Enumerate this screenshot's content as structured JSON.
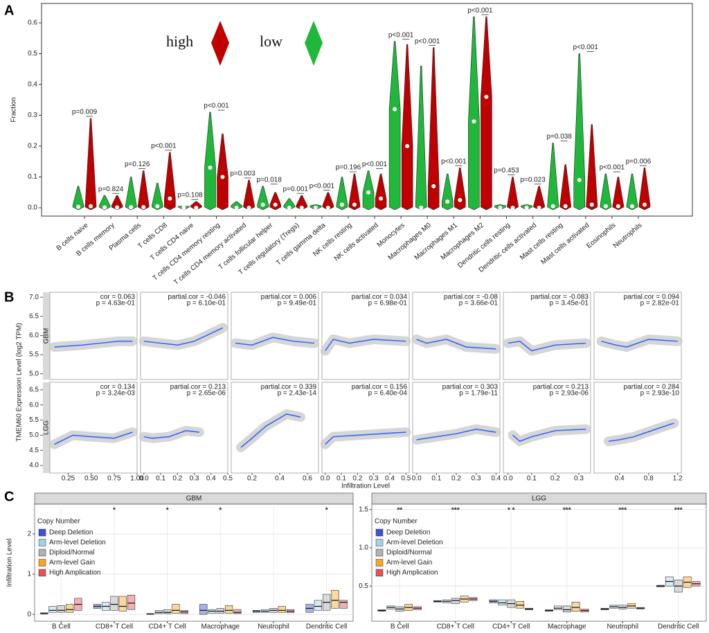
{
  "chart_data": [
    {
      "type": "violin",
      "label": "A",
      "ylabel": "Fraction",
      "ylim": [
        -0.027,
        0.663
      ],
      "yticks": [
        {
          "value": 0,
          "label": "0.0"
        },
        0.1,
        0.2,
        0.3,
        0.4,
        0.5,
        0.6
      ],
      "categories": [
        "B cells naive",
        "B cells memory",
        "Plasma cells",
        "T cells CD8",
        "T cells CD4 naive",
        "T cells CD4 memory resting",
        "T cells CD4 memory activated",
        "T cells follicular helper",
        "T cells regulatory (Tregs)",
        "T cells gamma delta",
        "NK cells resting",
        "NK cells activated",
        "Monocytes",
        "Macrophages M0",
        "Macrophages M1",
        "Macrophages M2",
        "Dendritic cells resting",
        "Dendritic cells activated",
        "Mast cells resting",
        "Mast cells activated",
        "Eosinophils",
        "Neutrophils"
      ],
      "p_labels": [
        "p=0.009",
        "p=0.824",
        "p=0.126",
        "p<0.001",
        "p=0.108",
        "p<0.001",
        "p=0.003",
        "p=0.018",
        "p=0.001",
        "p<0.001",
        "p=0.196",
        "p<0.001",
        "p<0.001",
        "p<0.001",
        "p<0.001",
        "p<0.001",
        "p=0.453",
        "p=0.023",
        "p=0.038",
        "p<0.001",
        "p<0.001",
        "p=0.006"
      ],
      "series": [
        {
          "name": "high",
          "color": "#c00000",
          "values": [
            0.005,
            0.001,
            0.002,
            0.03,
            0,
            0.1,
            0,
            0.01,
            0,
            0,
            0.01,
            0.03,
            0.2,
            0.07,
            0.025,
            0.36,
            0,
            0,
            0.005,
            0.01,
            0.005,
            0.01
          ],
          "max": [
            0.29,
            0.04,
            0.12,
            0.18,
            0.02,
            0.24,
            0.09,
            0.05,
            0.04,
            0.05,
            0.11,
            0.11,
            0.53,
            0.52,
            0.13,
            0.62,
            0.1,
            0.07,
            0.14,
            0.27,
            0.1,
            0.13
          ]
        },
        {
          "name": "low",
          "color": "#1fb83a",
          "values": [
            0.003,
            0.001,
            0.002,
            0.005,
            0,
            0.13,
            0,
            0.01,
            0,
            0,
            0.01,
            0.05,
            0.32,
            0,
            0.02,
            0.28,
            0,
            0,
            0.005,
            0.09,
            0.005,
            0.005
          ],
          "max": [
            0.07,
            0.04,
            0.1,
            0.08,
            0.005,
            0.31,
            0.02,
            0.07,
            0.03,
            0.01,
            0.1,
            0.12,
            0.54,
            0.46,
            0.11,
            0.62,
            0.01,
            0.01,
            0.21,
            0.5,
            0.11,
            0.11
          ]
        }
      ]
    },
    {
      "type": "scatter",
      "label": "B",
      "ylabel": "TMEM60 Expression Level (log2 TPM)",
      "xlabel": "Infiltration Level",
      "line_color": "#3366ff",
      "stat_color": "#e41a1c",
      "columns": [
        {
          "xlim": [
            0.05,
            1.0
          ],
          "xticks": [
            0.25,
            {
              "value": 0.5,
              "label": "0.50"
            },
            0.75,
            {
              "value": 1,
              "label": "1.00"
            }
          ]
        },
        {
          "xlim": [
            -0.02,
            0.5
          ],
          "xticks": [
            {
              "value": 0,
              "label": "0.0"
            },
            0.1,
            0.2,
            0.3,
            0.4,
            0.5
          ]
        },
        {
          "xlim": [
            0.05,
            0.68
          ],
          "xticks": [
            0.2,
            0.4,
            0.6
          ]
        },
        {
          "xlim": [
            -0.02,
            0.52
          ],
          "xticks": [
            {
              "value": 0,
              "label": "0.0"
            },
            0.1,
            0.2,
            0.3,
            0.4,
            0.5
          ]
        },
        {
          "xlim": [
            -0.02,
            0.42
          ],
          "xticks": [
            {
              "value": 0,
              "label": "0.0"
            },
            0.1,
            0.2,
            0.3,
            0.4
          ]
        },
        {
          "xlim": [
            -0.02,
            0.35
          ],
          "xticks": [
            {
              "value": 0,
              "label": "0.0"
            },
            0.1,
            0.2,
            0.3
          ]
        },
        {
          "xlim": [
            0.05,
            1.25
          ],
          "xticks": [
            0.4,
            0.8,
            1.2
          ]
        }
      ],
      "rows": [
        {
          "name": "GBM",
          "ylim": [
            4.85,
            7.13
          ],
          "yticks": [
            {
              "value": 5,
              "label": "5.0"
            },
            5.5,
            {
              "value": 6,
              "label": "6.0"
            },
            6.5,
            {
              "value": 7,
              "label": "7.0"
            }
          ],
          "panels": [
            {
              "stat": "cor = 0.063",
              "p": "p = 4.63e-01",
              "x": [
                0.1,
                0.4,
                0.6,
                0.8,
                0.95
              ],
              "y": [
                5.7,
                5.75,
                5.8,
                5.85,
                5.85
              ]
            },
            {
              "stat": "partial.cor = -0.046",
              "p": "p = 6.10e-01",
              "x": [
                0,
                0.1,
                0.2,
                0.3,
                0.47
              ],
              "y": [
                5.85,
                5.8,
                5.75,
                5.85,
                6.2
              ]
            },
            {
              "stat": "partial.cor = 0.006",
              "p": "p = 9.49e-01",
              "x": [
                0.08,
                0.2,
                0.35,
                0.5,
                0.65
              ],
              "y": [
                5.8,
                5.75,
                5.95,
                5.85,
                5.8
              ]
            },
            {
              "stat": "partial.cor = 0.034",
              "p": "p = 6.98e-01",
              "x": [
                0,
                0.05,
                0.15,
                0.3,
                0.5
              ],
              "y": [
                5.6,
                5.9,
                5.8,
                5.9,
                5.85
              ]
            },
            {
              "stat": "partial.cor = -0.08",
              "p": "p = 3.66e-01",
              "x": [
                0,
                0.05,
                0.15,
                0.25,
                0.4
              ],
              "y": [
                5.9,
                5.8,
                5.9,
                5.7,
                5.65
              ]
            },
            {
              "stat": "partial.cor = -0.083",
              "p": "p = 3.45e-01",
              "x": [
                0,
                0.05,
                0.1,
                0.2,
                0.33
              ],
              "y": [
                5.8,
                5.85,
                5.6,
                5.75,
                5.8
              ]
            },
            {
              "stat": "partial.cor = 0.094",
              "p": "p = 2.82e-01",
              "x": [
                0.15,
                0.35,
                0.5,
                0.8,
                1.2
              ],
              "y": [
                5.85,
                5.75,
                5.7,
                5.9,
                5.85
              ]
            }
          ]
        },
        {
          "name": "LGG",
          "ylim": [
            3.75,
            6.75
          ],
          "yticks": [
            {
              "value": 4,
              "label": "4.0"
            },
            4.5,
            {
              "value": 5,
              "label": "5.0"
            },
            5.5,
            {
              "value": 6,
              "label": "6.0"
            },
            6.5
          ],
          "panels": [
            {
              "stat": "cor = 0.134",
              "p": "p = 3.24e-03",
              "x": [
                0.1,
                0.3,
                0.5,
                0.75,
                0.95
              ],
              "y": [
                4.7,
                5.0,
                4.95,
                4.9,
                5.1
              ]
            },
            {
              "stat": "partial.cor = 0.213",
              "p": "p = 2.65e-06",
              "x": [
                0,
                0.05,
                0.15,
                0.25,
                0.33
              ],
              "y": [
                4.95,
                4.9,
                4.95,
                5.15,
                5.1
              ]
            },
            {
              "stat": "partial.cor = 0.339",
              "p": "p = 2.43e-14",
              "x": [
                0.12,
                0.2,
                0.3,
                0.45,
                0.55
              ],
              "y": [
                4.6,
                4.9,
                5.3,
                5.7,
                5.6
              ]
            },
            {
              "stat": "partial.cor = 0.156",
              "p": "p = 6.40e-04",
              "x": [
                0,
                0.05,
                0.2,
                0.35,
                0.5
              ],
              "y": [
                4.7,
                4.95,
                5.0,
                5.05,
                5.1
              ]
            },
            {
              "stat": "partial.cor = 0.303",
              "p": "p = 1.79e-11",
              "x": [
                0,
                0.1,
                0.2,
                0.3,
                0.4
              ],
              "y": [
                4.85,
                4.95,
                5.05,
                5.2,
                5.1
              ]
            },
            {
              "stat": "partial.cor = 0.213",
              "p": "p = 2.93e-06",
              "x": [
                0.02,
                0.05,
                0.1,
                0.2,
                0.33
              ],
              "y": [
                5.0,
                4.8,
                4.95,
                5.15,
                5.2
              ]
            },
            {
              "stat": "partial.cor = 0.284",
              "p": "p = 2.93e-10",
              "x": [
                0.25,
                0.4,
                0.6,
                0.9,
                1.15
              ],
              "y": [
                4.8,
                4.85,
                4.95,
                5.2,
                5.4
              ]
            }
          ]
        }
      ]
    },
    {
      "type": "box",
      "label": "C",
      "ylabel": "Infiltration Level",
      "legend_title": "Copy Number",
      "legend": "top-left",
      "grid": true,
      "categories": [
        "B Cell",
        "CD8+ T Cell",
        "CD4+ T Cell",
        "Macrophage",
        "Neutrophil",
        "Dendritic Cell"
      ],
      "series": [
        {
          "name": "Deep Deletion",
          "color": "#3f51d6"
        },
        {
          "name": "Arm-level Deletion",
          "color": "#9fd3e6"
        },
        {
          "name": "Diploid/Normal",
          "color": "#b0b0b0"
        },
        {
          "name": "Arm-level Gain",
          "color": "#f5a623"
        },
        {
          "name": "High Amplication",
          "color": "#e8505b"
        }
      ],
      "facets": [
        {
          "name": "GBM",
          "ylim": [
            -0.17,
            2.74
          ],
          "yticks": [
            0,
            1,
            2
          ],
          "sig": [
            "",
            "*",
            "*",
            "*",
            "",
            "*"
          ],
          "series": [
            {
              "values": [
                0.02,
                0.2,
                0.01,
                0.1,
                0.08,
                0.15
              ],
              "q1": [
                0.01,
                0.15,
                0,
                0,
                0.05,
                0.05
              ],
              "q3": [
                0.04,
                0.25,
                0.02,
                0.25,
                0.1,
                0.25
              ]
            },
            {
              "values": [
                0.1,
                0.2,
                0.05,
                0.08,
                0.08,
                0.2
              ],
              "q1": [
                0.05,
                0.1,
                0.02,
                0.03,
                0.05,
                0.1
              ],
              "q3": [
                0.2,
                0.3,
                0.1,
                0.12,
                0.12,
                0.35
              ]
            },
            {
              "values": [
                0.1,
                0.25,
                0.05,
                0.08,
                0.1,
                0.3
              ],
              "q1": [
                0.05,
                0.1,
                0.02,
                0.03,
                0.05,
                0.1
              ],
              "q3": [
                0.22,
                0.45,
                0.12,
                0.15,
                0.15,
                0.5
              ]
            },
            {
              "values": [
                0.12,
                0.2,
                0.1,
                0.1,
                0.1,
                0.35
              ],
              "q1": [
                0.05,
                0.08,
                0.03,
                0.03,
                0.05,
                0.15
              ],
              "q3": [
                0.25,
                0.45,
                0.25,
                0.22,
                0.2,
                0.6
              ]
            },
            {
              "values": [
                0.25,
                0.28,
                0.06,
                0.05,
                0.08,
                0.3
              ],
              "q1": [
                0.1,
                0.12,
                0.02,
                0.02,
                0.04,
                0.15
              ],
              "q3": [
                0.4,
                0.48,
                0.1,
                0.12,
                0.12,
                0.35
              ]
            }
          ]
        },
        {
          "name": "LGG",
          "ylim": [
            0.04,
            1.57
          ],
          "yticks": [
            0.5,
            {
              "value": 1,
              "label": "1.0"
            },
            1.5
          ],
          "sig": [
            "**",
            "***",
            "* *",
            "***",
            "***",
            "***"
          ],
          "series": [
            {
              "values": [
                0.18,
                0.3,
                0.3,
                0.18,
                0.2,
                0.5
              ],
              "q1": [
                0.17,
                0.29,
                0.28,
                0.17,
                0.19,
                0.49
              ],
              "q3": [
                0.19,
                0.31,
                0.32,
                0.19,
                0.21,
                0.51
              ]
            },
            {
              "values": [
                0.22,
                0.3,
                0.28,
                0.21,
                0.23,
                0.56
              ],
              "q1": [
                0.2,
                0.28,
                0.25,
                0.19,
                0.21,
                0.5
              ],
              "q3": [
                0.24,
                0.32,
                0.32,
                0.24,
                0.25,
                0.62
              ]
            },
            {
              "values": [
                0.2,
                0.31,
                0.27,
                0.19,
                0.22,
                0.5
              ],
              "q1": [
                0.17,
                0.27,
                0.22,
                0.16,
                0.2,
                0.42
              ],
              "q3": [
                0.23,
                0.34,
                0.32,
                0.24,
                0.25,
                0.58
              ]
            },
            {
              "values": [
                0.22,
                0.33,
                0.25,
                0.22,
                0.24,
                0.55
              ],
              "q1": [
                0.18,
                0.29,
                0.21,
                0.17,
                0.21,
                0.48
              ],
              "q3": [
                0.26,
                0.37,
                0.3,
                0.29,
                0.27,
                0.62
              ]
            },
            {
              "values": [
                0.21,
                0.33,
                0.2,
                0.18,
                0.21,
                0.53
              ],
              "q1": [
                0.19,
                0.31,
                0.19,
                0.16,
                0.2,
                0.5
              ],
              "q3": [
                0.23,
                0.35,
                0.21,
                0.2,
                0.22,
                0.56
              ]
            }
          ]
        }
      ]
    }
  ]
}
